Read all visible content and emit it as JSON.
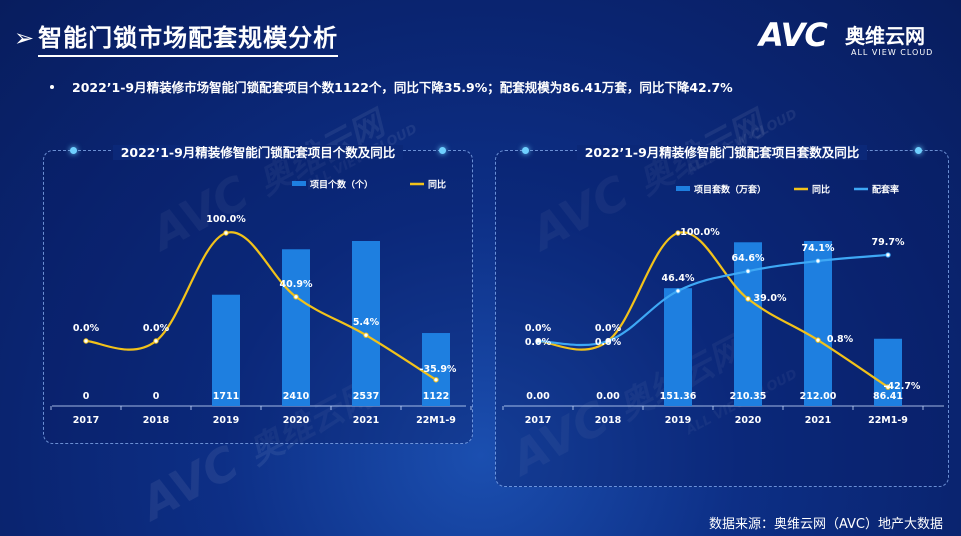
{
  "header": {
    "arrow": "➢",
    "title": "智能门锁市场配套规模分析"
  },
  "brand": {
    "logo": "AVC",
    "cn": "奥维云网",
    "en": "ALL VIEW CLOUD"
  },
  "watermark": {
    "logo": "AVC",
    "cn": "奥维云网",
    "en": "ALL VIEW CLOUD"
  },
  "bullet": "2022’1-9月精装修市场智能门锁配套项目个数1122个，同比下降35.9%；配套规模为86.41万套，同比下降42.7%",
  "chart_data": [
    {
      "type": "bar+line",
      "title": "2022’1-9月精装修智能门锁配套项目个数及同比",
      "categories": [
        "2017",
        "2018",
        "2019",
        "2020",
        "2021",
        "22M1-9"
      ],
      "series": [
        {
          "name": "项目个数（个）",
          "type": "bar",
          "values": [
            0,
            0,
            1711,
            2410,
            2537,
            1122
          ],
          "labels": [
            "0",
            "0",
            "1711",
            "2410",
            "2537",
            "1122"
          ],
          "color": "#1e7fe0"
        },
        {
          "name": "同比",
          "type": "line",
          "values": [
            0.0,
            0.0,
            100.0,
            40.9,
            5.4,
            -35.9
          ],
          "labels": [
            "0.0%",
            "0.0%",
            "100.0%",
            "40.9%",
            "5.4%",
            "-35.9%"
          ],
          "color": "#f2c21a"
        }
      ],
      "legend": "top-right"
    },
    {
      "type": "bar+line",
      "title": "2022’1-9月精装修智能门锁配套项目套数及同比",
      "categories": [
        "2017",
        "2018",
        "2019",
        "2020",
        "2021",
        "22M1-9"
      ],
      "series": [
        {
          "name": "项目套数（万套）",
          "type": "bar",
          "values": [
            0.0,
            0.0,
            151.36,
            210.35,
            212.0,
            86.41
          ],
          "labels": [
            "0.00",
            "0.00",
            "151.36",
            "210.35",
            "212.00",
            "86.41"
          ],
          "color": "#1e7fe0"
        },
        {
          "name": "同比",
          "type": "line",
          "values": [
            0.0,
            0.0,
            100.0,
            39.0,
            0.8,
            -42.7
          ],
          "labels": [
            "0.0%",
            "0.0%",
            "100.0%",
            "39.0%",
            "0.8%",
            "-42.7%"
          ],
          "color": "#f2c21a"
        },
        {
          "name": "配套率",
          "type": "line",
          "values": [
            0.0,
            0.0,
            46.4,
            64.6,
            74.1,
            79.7
          ],
          "labels": [
            "0.0%",
            "0.0%",
            "46.4%",
            "64.6%",
            "74.1%",
            "79.7%"
          ],
          "color": "#3ea8f5"
        }
      ],
      "legend": "top"
    }
  ],
  "source": "数据来源：奥维云网（AVC）地产大数据"
}
